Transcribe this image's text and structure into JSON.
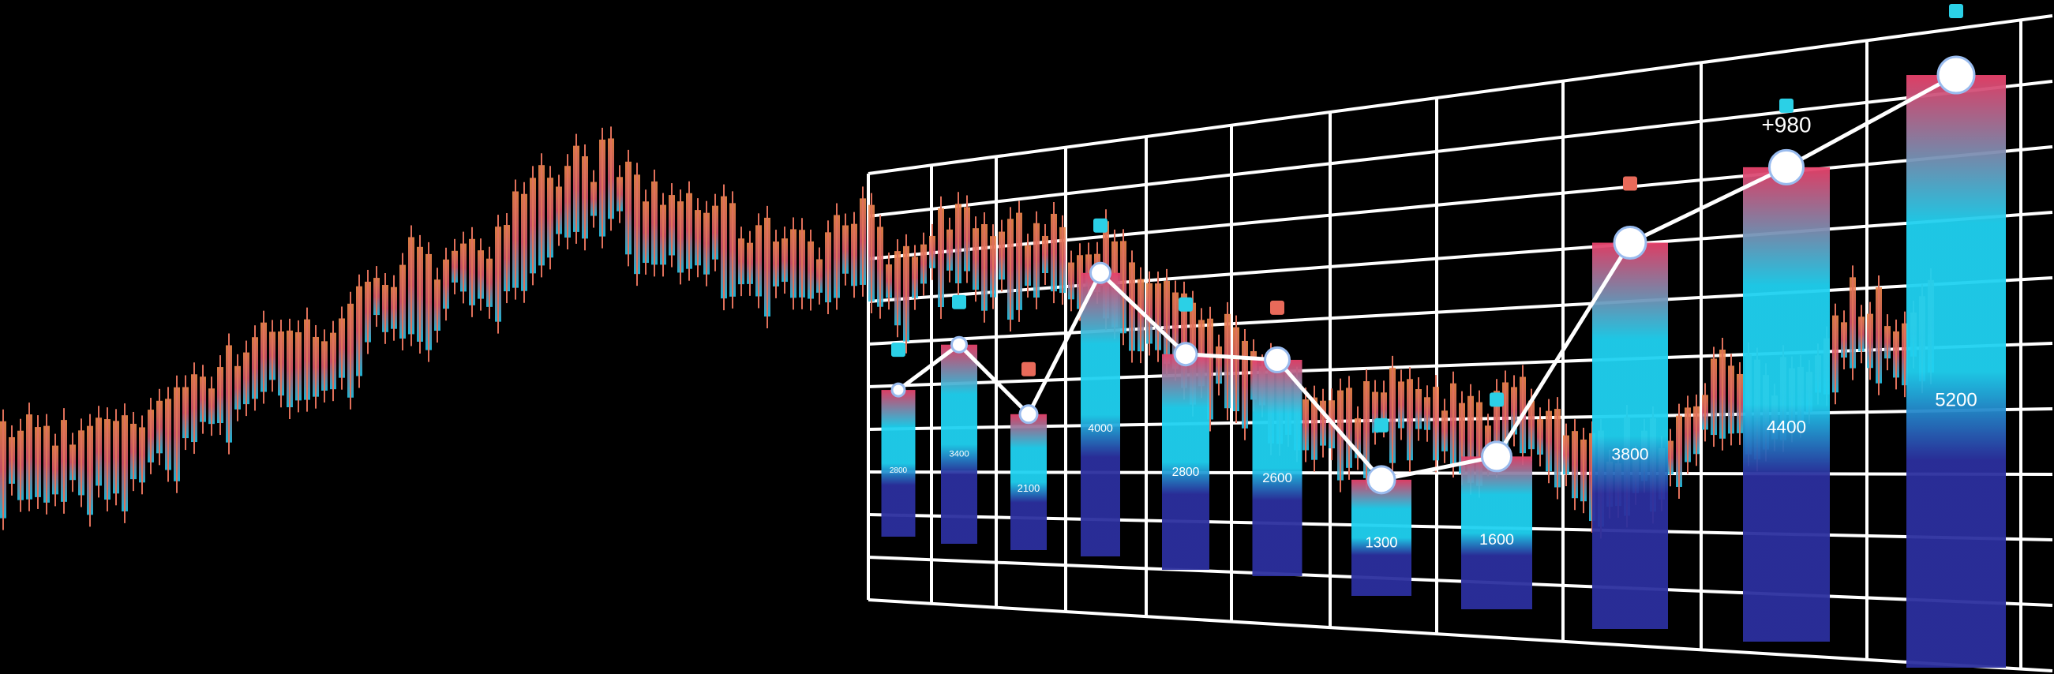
{
  "chart_data": {
    "type": "bar",
    "values": [
      2800,
      3400,
      2100,
      4000,
      2800,
      2600,
      1300,
      1600,
      3800,
      4400,
      5200
    ],
    "colors": [
      "#e8416a",
      "#1fd1f0",
      "#2b2f9e"
    ],
    "line_color": "#ffffff",
    "annotation": "+980",
    "grid": true
  }
}
